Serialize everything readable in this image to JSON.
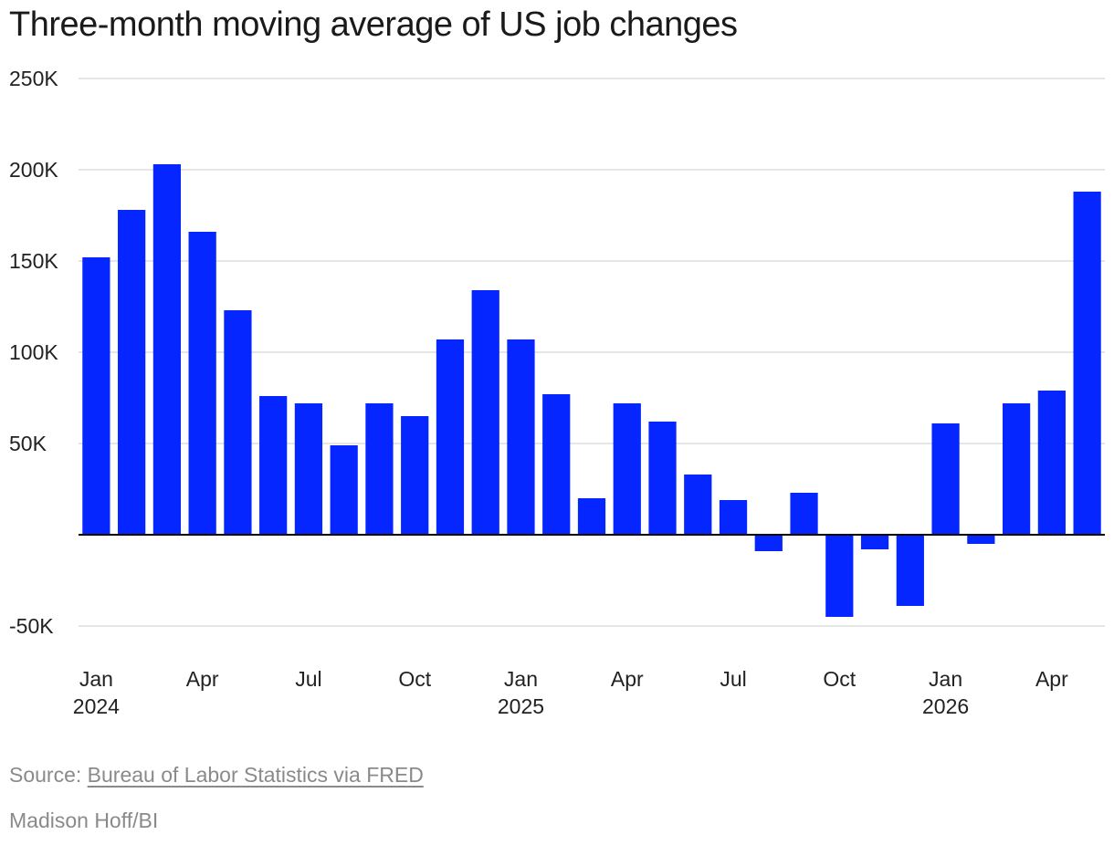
{
  "colors": {
    "bar": "#0526ff",
    "grid": "#dedede",
    "zero": "#000000"
  },
  "source": {
    "prefix": "Source: ",
    "link": "Bureau of Labor Statistics via FRED"
  },
  "credit": "Madison Hoff/BI",
  "chart_data": {
    "type": "bar",
    "title": "Three-month moving average of US job changes",
    "xlabel": "",
    "ylabel": "",
    "ylim": [
      -50000,
      250000
    ],
    "yticks": [
      -50000,
      0,
      50000,
      100000,
      150000,
      200000,
      250000
    ],
    "ytick_labels": [
      "-50K",
      "",
      "50K",
      "100K",
      "150K",
      "200K",
      "250K"
    ],
    "grid": true,
    "categories": [
      "Jan 2024",
      "Feb 2024",
      "Mar 2024",
      "Apr 2024",
      "May 2024",
      "Jun 2024",
      "Jul 2024",
      "Aug 2024",
      "Sep 2024",
      "Oct 2024",
      "Nov 2024",
      "Dec 2024",
      "Jan 2025",
      "Feb 2025",
      "Mar 2025",
      "Apr 2025",
      "May 2025",
      "Jun 2025",
      "Jul 2025",
      "Aug 2025",
      "Sep 2025",
      "Oct 2025",
      "Nov 2025",
      "Dec 2025",
      "Jan 2026",
      "Feb 2026",
      "Mar 2026",
      "Apr 2026",
      "May 2026"
    ],
    "values": [
      152000,
      178000,
      203000,
      166000,
      123000,
      76000,
      72000,
      49000,
      72000,
      65000,
      107000,
      134000,
      107000,
      77000,
      20000,
      72000,
      62000,
      33000,
      19000,
      -9000,
      23000,
      -45000,
      -8000,
      -39000,
      61000,
      -5000,
      72000,
      79000,
      188000
    ],
    "xtick_labels": [
      {
        "index": 0,
        "month": "Jan",
        "year": "2024"
      },
      {
        "index": 3,
        "month": "Apr",
        "year": ""
      },
      {
        "index": 6,
        "month": "Jul",
        "year": ""
      },
      {
        "index": 9,
        "month": "Oct",
        "year": ""
      },
      {
        "index": 12,
        "month": "Jan",
        "year": "2025"
      },
      {
        "index": 15,
        "month": "Apr",
        "year": ""
      },
      {
        "index": 18,
        "month": "Jul",
        "year": ""
      },
      {
        "index": 21,
        "month": "Oct",
        "year": ""
      },
      {
        "index": 24,
        "month": "Jan",
        "year": "2026"
      },
      {
        "index": 27,
        "month": "Apr",
        "year": ""
      }
    ]
  }
}
